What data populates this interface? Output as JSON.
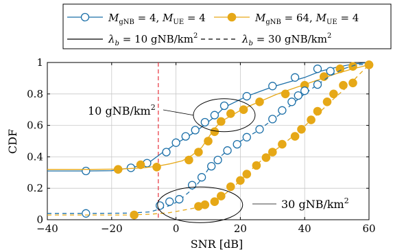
{
  "chart_data": {
    "type": "line",
    "xlabel": "SNR [dB]",
    "ylabel": "CDF",
    "xlim": [
      -40,
      60
    ],
    "ylim": [
      0,
      1
    ],
    "xticks": [
      -40,
      -20,
      0,
      20,
      40,
      60
    ],
    "yticks": [
      0,
      0.2,
      0.4,
      0.6,
      0.8,
      1
    ],
    "xtick_labels": [
      "−40",
      "−20",
      "0",
      "20",
      "40",
      "60"
    ],
    "ytick_labels": [
      "0",
      "0.2",
      "0.4",
      "0.6",
      "0.8",
      "1"
    ],
    "grid": true,
    "vline": {
      "x": -5.5,
      "color": "#e8323c",
      "style": "dashed"
    },
    "legend": {
      "placement": "top",
      "entries": [
        {
          "id": "m4",
          "label": "M_gNB = 4, M_UE = 4",
          "color": "#1b6fa8",
          "marker": "circle-open",
          "line": "solid"
        },
        {
          "id": "m64",
          "label": "M_gNB = 64, M_UE = 4",
          "color": "#e6a817",
          "marker": "circle-filled",
          "line": "solid"
        },
        {
          "id": "lam10",
          "label": "λ_b = 10 gNB/km²",
          "color": "#000000",
          "marker": "none",
          "line": "solid"
        },
        {
          "id": "lam30",
          "label": "λ_b = 30 gNB/km²",
          "color": "#000000",
          "marker": "none",
          "line": "dashed"
        }
      ]
    },
    "annotations": [
      {
        "id": "ann10",
        "text": "10 gNB/km²",
        "ellipse_center": [
          15,
          0.665
        ]
      },
      {
        "id": "ann30",
        "text": "30 gNB/km²",
        "ellipse_center": [
          7.5,
          0.095
        ]
      }
    ],
    "series": [
      {
        "id": "m4_10",
        "legend": "m4",
        "color": "#1b6fa8",
        "marker": "circle-open",
        "dash": false,
        "line": [
          [
            -40,
            0.31
          ],
          [
            -28,
            0.31
          ],
          [
            -20,
            0.312
          ],
          [
            -14,
            0.33
          ],
          [
            -10,
            0.35
          ],
          [
            -8,
            0.37
          ],
          [
            -6,
            0.4
          ],
          [
            -4,
            0.43
          ],
          [
            -2,
            0.455
          ],
          [
            0,
            0.485
          ],
          [
            3,
            0.52
          ],
          [
            6,
            0.56
          ],
          [
            9,
            0.605
          ],
          [
            12,
            0.655
          ],
          [
            15,
            0.715
          ],
          [
            18,
            0.745
          ],
          [
            22,
            0.785
          ],
          [
            26,
            0.815
          ],
          [
            30,
            0.845
          ],
          [
            35,
            0.875
          ],
          [
            40,
            0.905
          ],
          [
            45,
            0.945
          ],
          [
            50,
            0.97
          ],
          [
            55,
            0.99
          ],
          [
            60,
            1.0
          ]
        ],
        "markers": [
          [
            -28,
            0.31
          ],
          [
            -14,
            0.33
          ],
          [
            -9,
            0.36
          ],
          [
            -3,
            0.43
          ],
          [
            0,
            0.49
          ],
          [
            3,
            0.53
          ],
          [
            6,
            0.57
          ],
          [
            9,
            0.62
          ],
          [
            12,
            0.665
          ],
          [
            15,
            0.725
          ],
          [
            22,
            0.785
          ],
          [
            30,
            0.85
          ],
          [
            37,
            0.905
          ],
          [
            44,
            0.96
          ],
          [
            48,
            0.945
          ]
        ]
      },
      {
        "id": "m64_10",
        "legend": "m64",
        "color": "#e6a817",
        "marker": "circle-filled",
        "dash": false,
        "line": [
          [
            -40,
            0.32
          ],
          [
            -26,
            0.32
          ],
          [
            -18,
            0.322
          ],
          [
            -10,
            0.33
          ],
          [
            -6,
            0.34
          ],
          [
            -2,
            0.355
          ],
          [
            2,
            0.375
          ],
          [
            5,
            0.41
          ],
          [
            8,
            0.46
          ],
          [
            10,
            0.52
          ],
          [
            12,
            0.58
          ],
          [
            14,
            0.625
          ],
          [
            17,
            0.66
          ],
          [
            20,
            0.695
          ],
          [
            23,
            0.725
          ],
          [
            27,
            0.76
          ],
          [
            31,
            0.795
          ],
          [
            35,
            0.825
          ],
          [
            40,
            0.86
          ],
          [
            45,
            0.895
          ],
          [
            50,
            0.93
          ],
          [
            55,
            0.96
          ],
          [
            60,
            0.985
          ]
        ],
        "markers": [
          [
            -18,
            0.32
          ],
          [
            -11,
            0.35
          ],
          [
            -6,
            0.335
          ],
          [
            4,
            0.38
          ],
          [
            7,
            0.43
          ],
          [
            10,
            0.5
          ],
          [
            12,
            0.56
          ],
          [
            14,
            0.625
          ],
          [
            17,
            0.675
          ],
          [
            21,
            0.7
          ],
          [
            26,
            0.75
          ],
          [
            34,
            0.8
          ],
          [
            40,
            0.855
          ],
          [
            46,
            0.91
          ],
          [
            51,
            0.96
          ],
          [
            55,
            0.975
          ],
          [
            60,
            0.985
          ]
        ]
      },
      {
        "id": "m4_30",
        "legend": "m4",
        "color": "#1b6fa8",
        "marker": "circle-open",
        "dash": true,
        "line": [
          [
            -40,
            0.04
          ],
          [
            -28,
            0.04
          ],
          [
            -15,
            0.042
          ],
          [
            -8,
            0.05
          ],
          [
            -4,
            0.075
          ],
          [
            -2,
            0.09
          ],
          [
            0,
            0.11
          ],
          [
            2,
            0.14
          ],
          [
            4,
            0.175
          ],
          [
            6,
            0.21
          ],
          [
            8,
            0.26
          ],
          [
            10,
            0.32
          ],
          [
            12,
            0.37
          ],
          [
            14,
            0.405
          ],
          [
            16,
            0.44
          ],
          [
            19,
            0.485
          ],
          [
            22,
            0.525
          ],
          [
            25,
            0.56
          ],
          [
            28,
            0.605
          ],
          [
            31,
            0.65
          ],
          [
            34,
            0.7
          ],
          [
            37,
            0.75
          ],
          [
            40,
            0.8
          ],
          [
            44,
            0.86
          ],
          [
            48,
            0.915
          ],
          [
            52,
            0.96
          ],
          [
            56,
            0.985
          ],
          [
            60,
            0.99
          ]
        ],
        "markers": [
          [
            -28,
            0.04
          ],
          [
            -5,
            0.09
          ],
          [
            -2,
            0.115
          ],
          [
            1,
            0.13
          ],
          [
            5,
            0.22
          ],
          [
            8,
            0.27
          ],
          [
            11,
            0.34
          ],
          [
            13,
            0.38
          ],
          [
            16,
            0.44
          ],
          [
            19,
            0.48
          ],
          [
            22,
            0.525
          ],
          [
            26,
            0.575
          ],
          [
            30,
            0.64
          ],
          [
            33,
            0.695
          ],
          [
            36,
            0.75
          ],
          [
            38,
            0.79
          ],
          [
            40,
            0.82
          ],
          [
            44,
            0.86
          ]
        ]
      },
      {
        "id": "m64_30",
        "legend": "m64",
        "color": "#e6a817",
        "marker": "circle-filled",
        "dash": true,
        "line": [
          [
            -40,
            0.03
          ],
          [
            -28,
            0.03
          ],
          [
            -15,
            0.03
          ],
          [
            -8,
            0.035
          ],
          [
            -2,
            0.045
          ],
          [
            2,
            0.06
          ],
          [
            6,
            0.075
          ],
          [
            9,
            0.09
          ],
          [
            12,
            0.12
          ],
          [
            15,
            0.16
          ],
          [
            18,
            0.21
          ],
          [
            21,
            0.27
          ],
          [
            24,
            0.33
          ],
          [
            27,
            0.385
          ],
          [
            30,
            0.43
          ],
          [
            33,
            0.475
          ],
          [
            36,
            0.525
          ],
          [
            39,
            0.575
          ],
          [
            42,
            0.635
          ],
          [
            45,
            0.69
          ],
          [
            48,
            0.75
          ],
          [
            51,
            0.805
          ],
          [
            54,
            0.86
          ],
          [
            57,
            0.925
          ],
          [
            60,
            0.985
          ]
        ],
        "markers": [
          [
            -13,
            0.03
          ],
          [
            7,
            0.085
          ],
          [
            9,
            0.095
          ],
          [
            12,
            0.115
          ],
          [
            14,
            0.15
          ],
          [
            17,
            0.21
          ],
          [
            20,
            0.25
          ],
          [
            22,
            0.29
          ],
          [
            25,
            0.345
          ],
          [
            28,
            0.395
          ],
          [
            30,
            0.43
          ],
          [
            33,
            0.48
          ],
          [
            37,
            0.53
          ],
          [
            39,
            0.575
          ],
          [
            42,
            0.635
          ],
          [
            44,
            0.69
          ],
          [
            47,
            0.75
          ],
          [
            49,
            0.8
          ],
          [
            52,
            0.855
          ],
          [
            55,
            0.87
          ],
          [
            60,
            0.985
          ]
        ]
      }
    ]
  }
}
